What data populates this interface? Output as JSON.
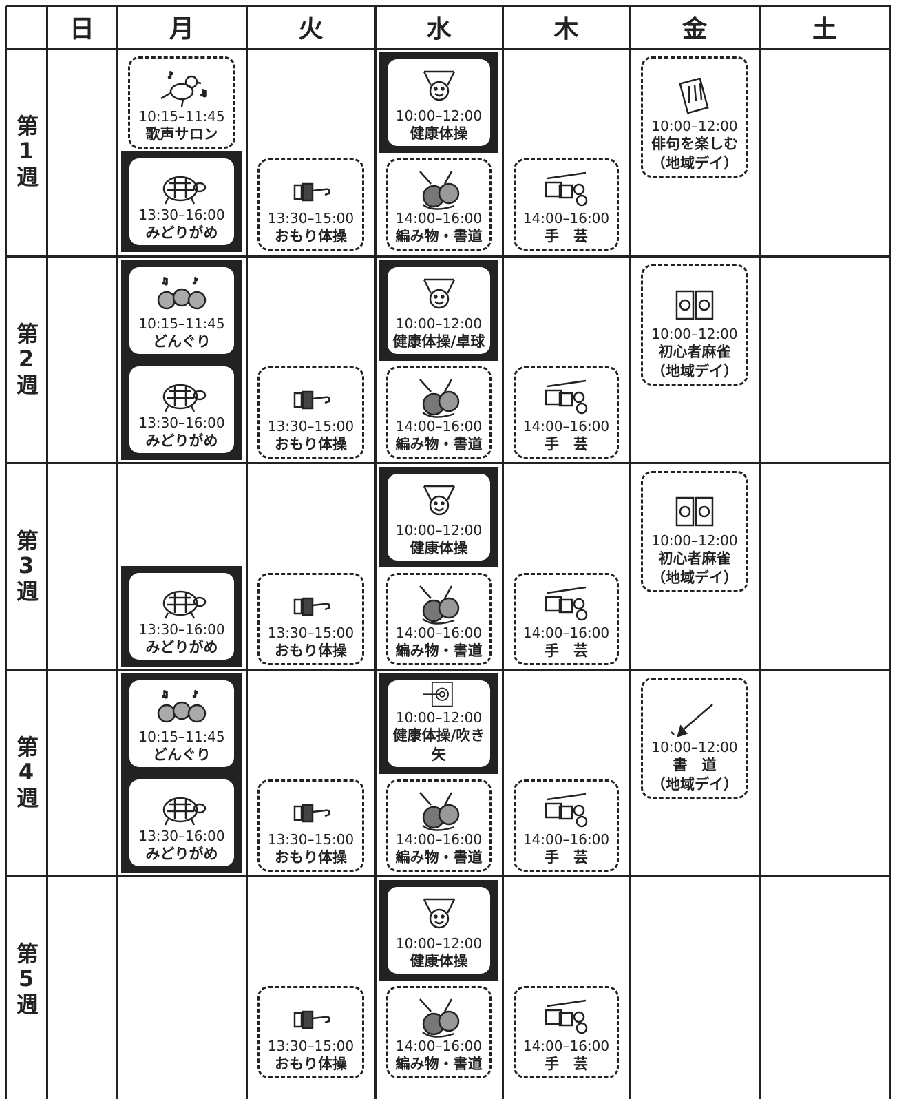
{
  "header": {
    "days": [
      "日",
      "月",
      "火",
      "水",
      "木",
      "金",
      "土"
    ]
  },
  "weeks": [
    {
      "label": "第1週",
      "days": [
        [],
        [
          {
            "time": "10:15–11:45",
            "name": "歌声サロン",
            "style": "dashed",
            "icon": "bird"
          },
          {
            "time": "13:30–16:00",
            "name": "みどりがめ",
            "style": "solid",
            "icon": "turtle"
          }
        ],
        [
          {
            "time": "13:30–15:00",
            "name": "おもり体操",
            "style": "dashed",
            "icon": "weight"
          }
        ],
        [
          {
            "time": "10:00–12:00",
            "name": "健康体操",
            "style": "solid",
            "icon": "exercise"
          },
          {
            "time": "14:00–16:00",
            "name": "編み物・書道",
            "style": "dashed",
            "icon": "yarn"
          }
        ],
        [
          {
            "time": "14:00–16:00",
            "name": "手　芸",
            "style": "dashed",
            "icon": "craft"
          }
        ],
        [
          {
            "time": "10:00–12:00",
            "name": "俳句を楽しむ\n（地域デイ）",
            "style": "dashed",
            "icon": "haiku"
          }
        ],
        []
      ]
    },
    {
      "label": "第2週",
      "days": [
        [],
        [
          {
            "time": "10:15–11:45",
            "name": "どんぐり",
            "style": "solid",
            "icon": "acorn"
          },
          {
            "time": "13:30–16:00",
            "name": "みどりがめ",
            "style": "solid",
            "icon": "turtle"
          }
        ],
        [
          {
            "time": "13:30–15:00",
            "name": "おもり体操",
            "style": "dashed",
            "icon": "weight"
          }
        ],
        [
          {
            "time": "10:00–12:00",
            "name": "健康体操/卓球",
            "style": "solid",
            "icon": "exercise"
          },
          {
            "time": "14:00–16:00",
            "name": "編み物・書道",
            "style": "dashed",
            "icon": "yarn"
          }
        ],
        [
          {
            "time": "14:00–16:00",
            "name": "手　芸",
            "style": "dashed",
            "icon": "craft"
          }
        ],
        [
          {
            "time": "10:00–12:00",
            "name": "初心者麻雀\n（地域デイ）",
            "style": "dashed",
            "icon": "mahjong"
          }
        ],
        []
      ]
    },
    {
      "label": "第3週",
      "days": [
        [],
        [
          {
            "time": "13:30–16:00",
            "name": "みどりがめ",
            "style": "solid",
            "icon": "turtle"
          }
        ],
        [
          {
            "time": "13:30–15:00",
            "name": "おもり体操",
            "style": "dashed",
            "icon": "weight"
          }
        ],
        [
          {
            "time": "10:00–12:00",
            "name": "健康体操",
            "style": "solid",
            "icon": "exercise"
          },
          {
            "time": "14:00–16:00",
            "name": "編み物・書道",
            "style": "dashed",
            "icon": "yarn"
          }
        ],
        [
          {
            "time": "14:00–16:00",
            "name": "手　芸",
            "style": "dashed",
            "icon": "craft"
          }
        ],
        [
          {
            "time": "10:00–12:00",
            "name": "初心者麻雀\n（地域デイ）",
            "style": "dashed",
            "icon": "mahjong"
          }
        ],
        []
      ]
    },
    {
      "label": "第4週",
      "days": [
        [],
        [
          {
            "time": "10:15–11:45",
            "name": "どんぐり",
            "style": "solid",
            "icon": "acorn"
          },
          {
            "time": "13:30–16:00",
            "name": "みどりがめ",
            "style": "solid",
            "icon": "turtle"
          }
        ],
        [
          {
            "time": "13:30–15:00",
            "name": "おもり体操",
            "style": "dashed",
            "icon": "weight"
          }
        ],
        [
          {
            "time": "10:00–12:00",
            "name": "健康体操/吹き矢",
            "style": "solid",
            "icon": "target"
          },
          {
            "time": "14:00–16:00",
            "name": "編み物・書道",
            "style": "dashed",
            "icon": "yarn"
          }
        ],
        [
          {
            "time": "14:00–16:00",
            "name": "手　芸",
            "style": "dashed",
            "icon": "craft"
          }
        ],
        [
          {
            "time": "10:00–12:00",
            "name": "書　道\n（地域デイ）",
            "style": "dashed",
            "icon": "brush"
          }
        ],
        []
      ]
    },
    {
      "label": "第5週",
      "days": [
        [],
        [],
        [
          {
            "time": "13:30–15:00",
            "name": "おもり体操",
            "style": "dashed",
            "icon": "weight"
          }
        ],
        [
          {
            "time": "10:00–12:00",
            "name": "健康体操",
            "style": "solid",
            "icon": "exercise"
          },
          {
            "time": "14:00–16:00",
            "name": "編み物・書道",
            "style": "dashed",
            "icon": "yarn"
          }
        ],
        [
          {
            "time": "14:00–16:00",
            "name": "手　芸",
            "style": "dashed",
            "icon": "craft"
          }
        ],
        [],
        []
      ]
    }
  ]
}
